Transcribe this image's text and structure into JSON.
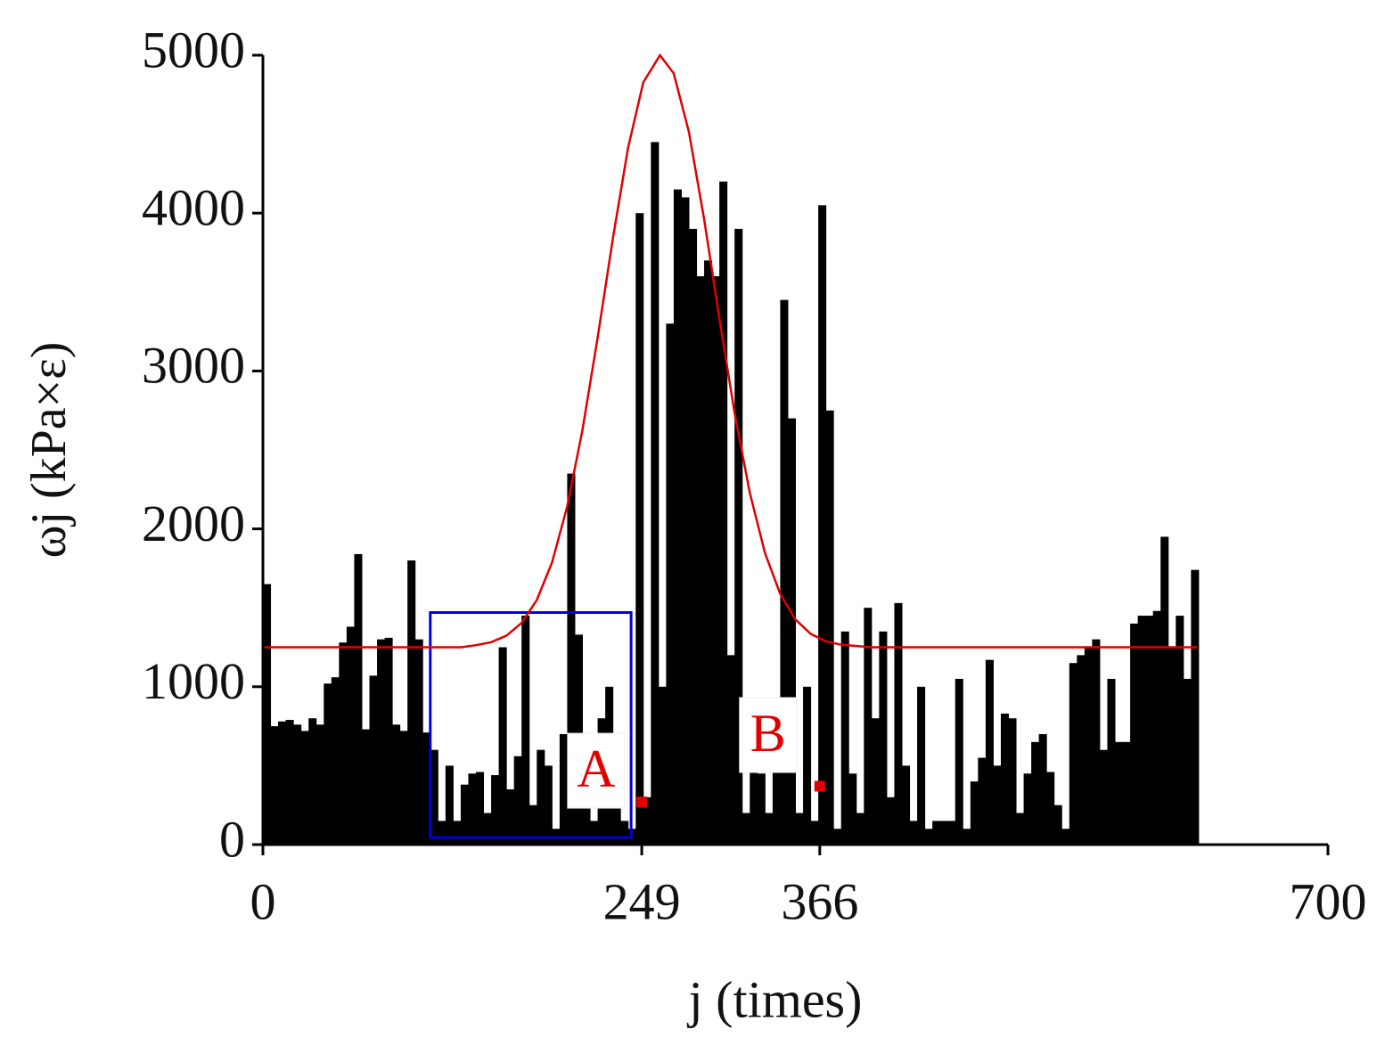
{
  "chart_data": {
    "type": "bar",
    "y_label": "ωj (kPa×ε)",
    "x_label": "j (times)",
    "xlim": [
      0,
      700
    ],
    "ylim": [
      0,
      5000
    ],
    "xticks": [
      0,
      249,
      366,
      700
    ],
    "yticks": [
      0,
      1000,
      2000,
      3000,
      4000,
      5000
    ],
    "color": "#000000",
    "x": [
      0,
      5,
      10,
      15,
      20,
      25,
      30,
      35,
      40,
      45,
      50,
      55,
      60,
      65,
      70,
      75,
      80,
      85,
      90,
      95,
      100,
      105,
      110,
      115,
      120,
      125,
      130,
      135,
      140,
      145,
      150,
      155,
      160,
      165,
      170,
      175,
      180,
      185,
      190,
      195,
      200,
      205,
      210,
      215,
      220,
      225,
      230,
      235,
      240,
      245,
      250,
      255,
      260,
      265,
      270,
      275,
      280,
      285,
      290,
      295,
      300,
      305,
      310,
      315,
      320,
      325,
      330,
      335,
      340,
      345,
      350,
      355,
      360,
      365,
      370,
      375,
      380,
      385,
      390,
      395,
      400,
      405,
      410,
      415,
      420,
      425,
      430,
      435,
      440,
      445,
      450,
      455,
      460,
      465,
      470,
      475,
      480,
      485,
      490,
      495,
      500,
      505,
      510,
      515,
      520,
      525,
      530,
      535,
      540,
      545,
      550,
      555,
      560,
      565,
      570,
      575,
      580,
      585,
      590,
      595,
      600,
      605,
      610
    ],
    "values": [
      1650,
      750,
      780,
      790,
      760,
      720,
      800,
      760,
      1020,
      1060,
      1280,
      1380,
      1840,
      730,
      1070,
      1300,
      1310,
      760,
      720,
      1800,
      1300,
      710,
      600,
      150,
      500,
      150,
      380,
      450,
      460,
      200,
      440,
      1250,
      350,
      560,
      1450,
      250,
      600,
      500,
      100,
      700,
      2350,
      1330,
      300,
      150,
      800,
      1000,
      250,
      150,
      100,
      4000,
      300,
      4450,
      1000,
      3300,
      4150,
      4100,
      3900,
      3600,
      3700,
      3600,
      4200,
      1200,
      3900,
      200,
      700,
      450,
      200,
      600,
      3450,
      2700,
      200,
      1000,
      150,
      4050,
      2750,
      100,
      1350,
      450,
      200,
      1500,
      800,
      1350,
      300,
      1530,
      500,
      150,
      1000,
      100,
      150,
      150,
      150,
      1050,
      100,
      400,
      550,
      1170,
      500,
      830,
      800,
      200,
      450,
      650,
      700,
      460,
      250,
      100,
      1150,
      1200,
      1250,
      1300,
      600,
      1050,
      650,
      650,
      1400,
      1450,
      1450,
      1480,
      1950,
      1250,
      1450,
      1050,
      1740
    ],
    "curve": {
      "color": "#e00000",
      "x": [
        0,
        130,
        140,
        150,
        160,
        170,
        180,
        190,
        200,
        210,
        220,
        230,
        240,
        250,
        261,
        270,
        280,
        290,
        300,
        310,
        320,
        330,
        340,
        350,
        360,
        370,
        380,
        400,
        614
      ],
      "values": [
        1250,
        1250,
        1263,
        1282,
        1323,
        1404,
        1549,
        1786,
        2142,
        2625,
        3211,
        3838,
        4413,
        4828,
        5000,
        4885,
        4514,
        3961,
        3335,
        2735,
        2229,
        1847,
        1588,
        1426,
        1335,
        1288,
        1266,
        1250,
        1250
      ]
    },
    "highlight": {
      "color": "#0000dd",
      "x": [
        110,
        242
      ],
      "y": [
        45,
        1470
      ]
    },
    "points": {
      "color": "#e00000",
      "x": [
        249,
        366
      ],
      "values": [
        270,
        370
      ]
    },
    "annotations": [
      {
        "text": "A",
        "x": 219,
        "y": 468
      },
      {
        "text": "B",
        "x": 332,
        "y": 694
      }
    ]
  }
}
